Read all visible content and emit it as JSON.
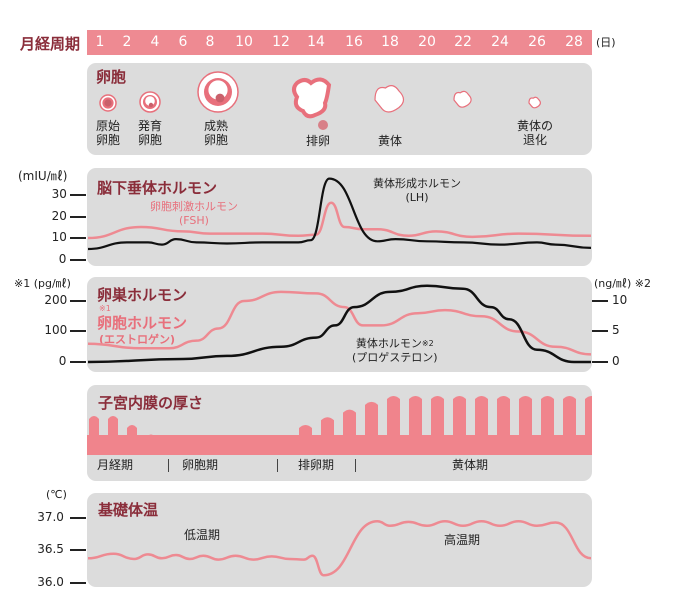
{
  "header": {
    "label": "月経周期",
    "unit": "(日)",
    "days": [
      "1",
      "2",
      "4",
      "6",
      "8",
      "10",
      "12",
      "14",
      "16",
      "18",
      "20",
      "22",
      "24",
      "26",
      "28"
    ]
  },
  "follicle": {
    "title": "卵胞",
    "stages": [
      {
        "label1": "原始",
        "label2": "卵胞"
      },
      {
        "label1": "発育",
        "label2": "卵胞"
      },
      {
        "label1": "成熟",
        "label2": "卵胞"
      },
      {
        "label1": "排卵",
        "label2": ""
      },
      {
        "label1": "黄体",
        "label2": ""
      },
      {
        "label1": "",
        "label2": ""
      },
      {
        "label1": "黄体の",
        "label2": "退化"
      }
    ]
  },
  "pituitary": {
    "title": "脳下垂体ホルモン",
    "unit": "(mIU/㎖)",
    "ticks": [
      "30",
      "20",
      "10",
      "0"
    ],
    "fsh_label": "卵胞刺激ホルモン",
    "fsh_abbr": "(FSH)",
    "lh_label": "黄体形成ホルモン",
    "lh_abbr": "(LH)"
  },
  "ovarian": {
    "title": "卵巣ホルモン",
    "left_unit": "※1 (pg/㎖)",
    "right_unit": "(ng/㎖) ※2",
    "left_ticks": [
      "200",
      "100",
      "0"
    ],
    "right_ticks": [
      "10",
      "5",
      "0"
    ],
    "estrogen_note": "※1",
    "estrogen_label": "卵胞ホルモン",
    "estrogen_sub": "(エストロゲン)",
    "progesterone_label": "黄体ホルモン",
    "progesterone_note": "※2",
    "progesterone_sub": "(プロゲステロン)"
  },
  "endometrium": {
    "title": "子宮内膜の厚さ",
    "phases": [
      "月経期",
      "卵胞期",
      "排卵期",
      "黄体期"
    ]
  },
  "bbt": {
    "title": "基礎体温",
    "unit": "(℃)",
    "ticks": [
      "37.0",
      "36.5",
      "36.0"
    ],
    "low_label": "低温期",
    "high_label": "高温期"
  },
  "colors": {
    "pink": "#ee8a92",
    "line_pink": "#e8707c",
    "dark": "#111111",
    "title": "#8a2d3a",
    "panel": "#dcdcdc"
  },
  "chart_data": [
    {
      "type": "line",
      "title": "脳下垂体ホルモン",
      "ylabel": "(mIU/㎖)",
      "ylim": [
        0,
        35
      ],
      "x_unit": "day",
      "series": [
        {
          "name": "卵胞刺激ホルモン (FSH)",
          "x": [
            0.5,
            3,
            6,
            8,
            11,
            13,
            14,
            14.8,
            15.5,
            16.5,
            17.3,
            19,
            20.5,
            22.5,
            25,
            28.9
          ],
          "values": [
            10,
            15,
            13,
            12,
            12,
            11,
            11.5,
            26,
            15,
            14,
            14,
            11,
            13,
            10.5,
            12,
            11
          ]
        },
        {
          "name": "黄体形成ホルモン (LH)",
          "x": [
            0.5,
            2,
            3.5,
            4.5,
            5.5,
            7,
            9,
            11,
            13,
            13.7,
            14.7,
            17.3,
            18.3,
            20,
            22,
            24,
            26,
            27,
            28.9
          ],
          "values": [
            5,
            8,
            8,
            7,
            9.5,
            8,
            7.5,
            8,
            8,
            9,
            37,
            8.5,
            9.5,
            8.5,
            8,
            7,
            8,
            7,
            5.5
          ]
        }
      ]
    },
    {
      "type": "line",
      "title": "卵巣ホルモン",
      "ylabel_left": "(pg/㎖)",
      "ylabel_right": "(ng/㎖)",
      "ylim_left": [
        0,
        250
      ],
      "ylim_right": [
        0,
        12.5
      ],
      "x_unit": "day",
      "series": [
        {
          "name": "卵胞ホルモン (エストロゲン)",
          "axis": "left",
          "x": [
            0.5,
            3,
            5,
            7,
            8.5,
            10,
            12,
            14,
            15.5,
            16.5,
            17.5,
            19.5,
            21,
            23,
            25,
            27,
            28.9
          ],
          "values": [
            60,
            45,
            45,
            70,
            110,
            200,
            230,
            225,
            180,
            120,
            120,
            160,
            170,
            150,
            100,
            50,
            25
          ]
        },
        {
          "name": "黄体ホルモン (プロゲステロン)",
          "axis": "right",
          "x": [
            0.5,
            6,
            9,
            12,
            14,
            15,
            16,
            18,
            20,
            22,
            23.5,
            24.5,
            26,
            28,
            28.9
          ],
          "values": [
            0,
            0.5,
            1,
            2.5,
            4,
            6,
            9,
            11.5,
            12.5,
            12,
            9,
            7,
            2,
            0,
            0
          ]
        }
      ]
    },
    {
      "type": "line",
      "title": "基礎体温",
      "ylabel": "(℃)",
      "ylim": [
        36.0,
        37.0
      ],
      "x_unit": "day",
      "series": [
        {
          "name": "基礎体温",
          "x": [
            0.5,
            1.5,
            2.5,
            3.5,
            4.5,
            5.5,
            6.5,
            7.5,
            8.5,
            9.5,
            10.5,
            11.5,
            12.5,
            13.3,
            13.8,
            14.4,
            17.3,
            18,
            19,
            20,
            21,
            22,
            23,
            24,
            25,
            26,
            27,
            28.9
          ],
          "values": [
            36.38,
            36.45,
            36.37,
            36.44,
            36.38,
            36.43,
            36.37,
            36.42,
            36.36,
            36.42,
            36.36,
            36.41,
            36.37,
            36.36,
            36.42,
            36.12,
            36.95,
            36.88,
            36.94,
            36.88,
            36.95,
            36.88,
            36.95,
            36.88,
            36.95,
            36.88,
            36.93,
            36.38
          ]
        }
      ]
    }
  ]
}
